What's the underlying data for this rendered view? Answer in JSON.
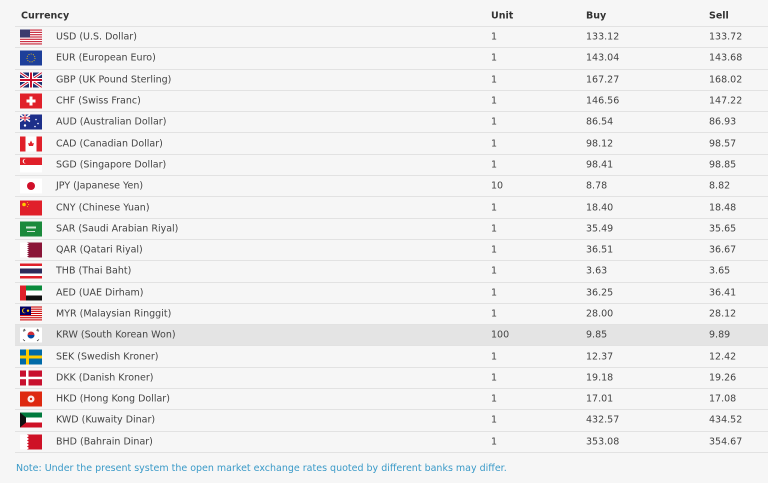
{
  "table": {
    "headers": {
      "currency": "Currency",
      "unit": "Unit",
      "buy": "Buy",
      "sell": "Sell"
    },
    "rows": [
      {
        "flag": "us-flag-icon",
        "currency": "USD (U.S. Dollar)",
        "unit": "1",
        "buy": "133.12",
        "sell": "133.72"
      },
      {
        "flag": "eu-flag-icon",
        "currency": "EUR (European Euro)",
        "unit": "1",
        "buy": "143.04",
        "sell": "143.68"
      },
      {
        "flag": "gb-flag-icon",
        "currency": "GBP (UK Pound Sterling)",
        "unit": "1",
        "buy": "167.27",
        "sell": "168.02"
      },
      {
        "flag": "ch-flag-icon",
        "currency": "CHF (Swiss Franc)",
        "unit": "1",
        "buy": "146.56",
        "sell": "147.22"
      },
      {
        "flag": "au-flag-icon",
        "currency": "AUD (Australian Dollar)",
        "unit": "1",
        "buy": "86.54",
        "sell": "86.93"
      },
      {
        "flag": "ca-flag-icon",
        "currency": "CAD (Canadian Dollar)",
        "unit": "1",
        "buy": "98.12",
        "sell": "98.57"
      },
      {
        "flag": "sg-flag-icon",
        "currency": "SGD (Singapore Dollar)",
        "unit": "1",
        "buy": "98.41",
        "sell": "98.85"
      },
      {
        "flag": "jp-flag-icon",
        "currency": "JPY (Japanese Yen)",
        "unit": "10",
        "buy": "8.78",
        "sell": "8.82"
      },
      {
        "flag": "cn-flag-icon",
        "currency": "CNY (Chinese Yuan)",
        "unit": "1",
        "buy": "18.40",
        "sell": "18.48"
      },
      {
        "flag": "sa-flag-icon",
        "currency": "SAR (Saudi Arabian Riyal)",
        "unit": "1",
        "buy": "35.49",
        "sell": "35.65"
      },
      {
        "flag": "qa-flag-icon",
        "currency": "QAR (Qatari Riyal)",
        "unit": "1",
        "buy": "36.51",
        "sell": "36.67"
      },
      {
        "flag": "th-flag-icon",
        "currency": "THB (Thai Baht)",
        "unit": "1",
        "buy": "3.63",
        "sell": "3.65"
      },
      {
        "flag": "ae-flag-icon",
        "currency": "AED (UAE Dirham)",
        "unit": "1",
        "buy": "36.25",
        "sell": "36.41"
      },
      {
        "flag": "my-flag-icon",
        "currency": "MYR (Malaysian Ringgit)",
        "unit": "1",
        "buy": "28.00",
        "sell": "28.12"
      },
      {
        "flag": "kr-flag-icon",
        "currency": "KRW (South Korean Won)",
        "unit": "100",
        "buy": "9.85",
        "sell": "9.89",
        "highlighted": true
      },
      {
        "flag": "se-flag-icon",
        "currency": "SEK (Swedish Kroner)",
        "unit": "1",
        "buy": "12.37",
        "sell": "12.42"
      },
      {
        "flag": "dk-flag-icon",
        "currency": "DKK (Danish Kroner)",
        "unit": "1",
        "buy": "19.18",
        "sell": "19.26"
      },
      {
        "flag": "hk-flag-icon",
        "currency": "HKD (Hong Kong Dollar)",
        "unit": "1",
        "buy": "17.01",
        "sell": "17.08"
      },
      {
        "flag": "kw-flag-icon",
        "currency": "KWD (Kuwaity Dinar)",
        "unit": "1",
        "buy": "432.57",
        "sell": "434.52"
      },
      {
        "flag": "bh-flag-icon",
        "currency": "BHD (Bahrain Dinar)",
        "unit": "1",
        "buy": "353.08",
        "sell": "354.67"
      }
    ]
  },
  "note": "Note: Under the present system the open market exchange rates quoted by different banks may differ.",
  "colors": {
    "note": "#3a9ac8",
    "highlight_row": "#e4e4e4",
    "background": "#f6f6f6"
  }
}
